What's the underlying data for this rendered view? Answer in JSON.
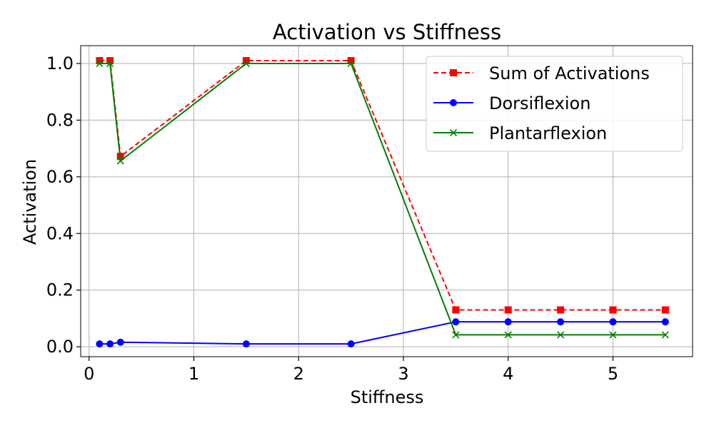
{
  "chart_data": {
    "type": "line",
    "title": "Activation vs Stiffness",
    "xlabel": "Stiffness",
    "ylabel": "Activation",
    "xlim": [
      -0.08,
      5.76
    ],
    "ylim": [
      -0.035,
      1.063
    ],
    "xticks": [
      0,
      1,
      2,
      3,
      4,
      5
    ],
    "xtick_labels": [
      "0",
      "1",
      "2",
      "3",
      "4",
      "5"
    ],
    "yticks": [
      0.0,
      0.2,
      0.4,
      0.6,
      0.8,
      1.0
    ],
    "ytick_labels": [
      "0.0",
      "0.2",
      "0.4",
      "0.6",
      "0.8",
      "1.0"
    ],
    "grid": true,
    "legend_position": "top-right",
    "x": [
      0.1,
      0.2,
      0.3,
      1.5,
      2.5,
      3.5,
      4.0,
      4.5,
      5.0,
      5.5
    ],
    "series": [
      {
        "name": "Sum of Activations",
        "color": "#ff0000",
        "dashed": true,
        "marker": "square",
        "values": [
          1.01,
          1.01,
          0.672,
          1.01,
          1.01,
          0.13,
          0.13,
          0.13,
          0.13,
          0.13
        ]
      },
      {
        "name": "Dorsiflexion",
        "color": "#0000ff",
        "dashed": false,
        "marker": "circle",
        "values": [
          0.01,
          0.01,
          0.016,
          0.01,
          0.01,
          0.088,
          0.088,
          0.088,
          0.088,
          0.088
        ]
      },
      {
        "name": "Plantarflexion",
        "color": "#008000",
        "dashed": false,
        "marker": "x",
        "values": [
          1.0,
          1.0,
          0.656,
          1.0,
          1.0,
          0.042,
          0.042,
          0.042,
          0.042,
          0.042
        ]
      }
    ]
  }
}
